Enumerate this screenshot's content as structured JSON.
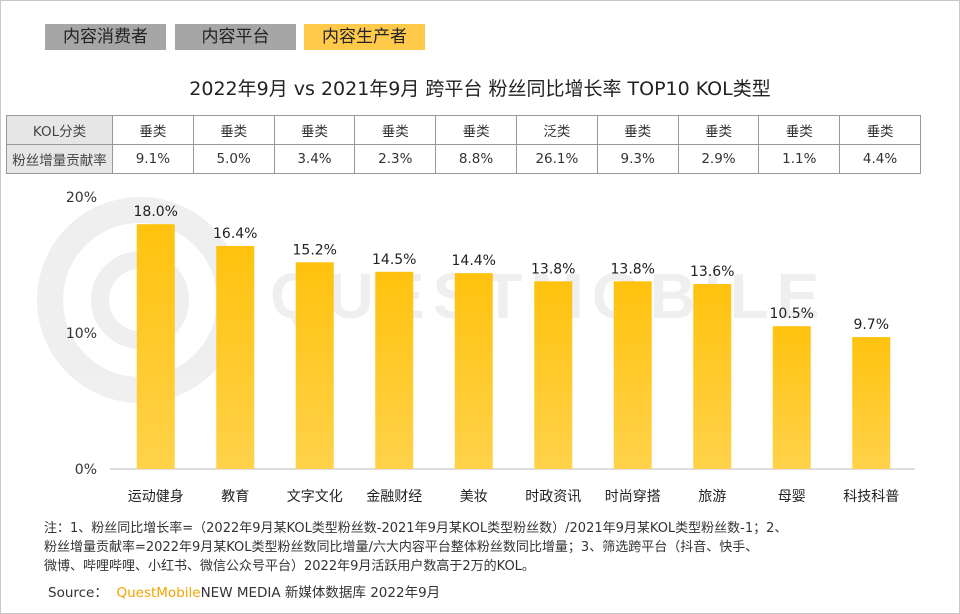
{
  "tabs": [
    {
      "label": "内容消费者",
      "color": "#a6a6a6"
    },
    {
      "label": "内容平台",
      "color": "#a6a6a6"
    },
    {
      "label": "内容生产者",
      "color": "#ffc94a"
    }
  ],
  "table": {
    "row_headers": [
      "KOL分类",
      "粉丝增量贡献率"
    ],
    "kol_types": [
      "垂类",
      "垂类",
      "垂类",
      "垂类",
      "垂类",
      "泛类",
      "垂类",
      "垂类",
      "垂类",
      "垂类"
    ],
    "contribution": [
      "9.1%",
      "5.0%",
      "3.4%",
      "2.3%",
      "8.8%",
      "26.1%",
      "9.3%",
      "2.9%",
      "1.1%",
      "4.4%"
    ]
  },
  "watermark": "QUESTMOBILE",
  "chart_data": {
    "type": "bar",
    "title": "2022年9月 vs 2021年9月 跨平台 粉丝同比增长率 TOP10 KOL类型",
    "categories": [
      "运动健身",
      "教育",
      "文字文化",
      "金融财经",
      "美妆",
      "时政资讯",
      "时尚穿搭",
      "旅游",
      "母婴",
      "科技科普"
    ],
    "values": [
      18.0,
      16.4,
      15.2,
      14.5,
      14.4,
      13.8,
      13.8,
      13.6,
      10.5,
      9.7
    ],
    "value_labels": [
      "18.0%",
      "16.4%",
      "15.2%",
      "14.5%",
      "14.4%",
      "13.8%",
      "13.8%",
      "13.6%",
      "10.5%",
      "9.7%"
    ],
    "ylim": [
      0,
      20
    ],
    "yticks": [
      {
        "v": 0,
        "label": "0%"
      },
      {
        "v": 10,
        "label": "10%"
      },
      {
        "v": 20,
        "label": "20%"
      }
    ],
    "grid": false,
    "bar_color": "#ffc20e"
  },
  "note": {
    "lines": [
      "注：1、粉丝同比增长率=（2022年9月某KOL类型粉丝数-2021年9月某KOL类型粉丝数）/2021年9月某KOL类型粉丝数-1；2、",
      "粉丝增量贡献率=2022年9月某KOL类型粉丝数同比增量/六大内容平台整体粉丝数同比增量；3、筛选跨平台（抖音、快手、",
      "微博、哔哩哔哩、小红书、微信公众号平台）2022年9月活跃用户数高于2万的KOL。"
    ]
  },
  "source": {
    "label": "Source：",
    "brand": "QuestMobile",
    "text": "NEW MEDIA 新媒体数据库 2022年9月"
  }
}
